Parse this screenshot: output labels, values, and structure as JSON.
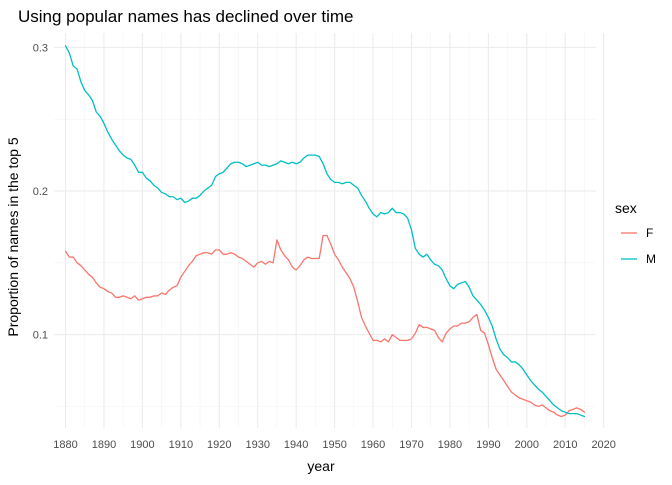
{
  "chart_data": {
    "type": "line",
    "title": "Using popular names has declined over time",
    "xlabel": "year",
    "ylabel": "Proportion of names in the top 5",
    "xlim": [
      1877,
      2018
    ],
    "ylim": [
      0.035,
      0.31
    ],
    "x_ticks": [
      1880,
      1890,
      1900,
      1910,
      1920,
      1930,
      1940,
      1950,
      1960,
      1970,
      1980,
      1990,
      2000,
      2010,
      2020
    ],
    "y_ticks": [
      0.1,
      0.2,
      0.3
    ],
    "y_tick_labels": [
      "0.1",
      "0.2",
      "0.3"
    ],
    "grid": true,
    "legend": {
      "title": "sex",
      "position": "right"
    },
    "series": [
      {
        "name": "F",
        "color": "#F8766D",
        "points": [
          [
            1880,
            0.158
          ],
          [
            1881,
            0.154
          ],
          [
            1882,
            0.154
          ],
          [
            1883,
            0.15
          ],
          [
            1884,
            0.148
          ],
          [
            1885,
            0.145
          ],
          [
            1886,
            0.142
          ],
          [
            1887,
            0.14
          ],
          [
            1888,
            0.136
          ],
          [
            1889,
            0.133
          ],
          [
            1890,
            0.132
          ],
          [
            1891,
            0.13
          ],
          [
            1892,
            0.129
          ],
          [
            1893,
            0.126
          ],
          [
            1894,
            0.126
          ],
          [
            1895,
            0.127
          ],
          [
            1896,
            0.126
          ],
          [
            1897,
            0.125
          ],
          [
            1898,
            0.127
          ],
          [
            1899,
            0.124
          ],
          [
            1900,
            0.125
          ],
          [
            1901,
            0.126
          ],
          [
            1902,
            0.126
          ],
          [
            1903,
            0.127
          ],
          [
            1904,
            0.127
          ],
          [
            1905,
            0.129
          ],
          [
            1906,
            0.128
          ],
          [
            1907,
            0.131
          ],
          [
            1908,
            0.133
          ],
          [
            1909,
            0.134
          ],
          [
            1910,
            0.14
          ],
          [
            1911,
            0.144
          ],
          [
            1912,
            0.148
          ],
          [
            1913,
            0.151
          ],
          [
            1914,
            0.155
          ],
          [
            1915,
            0.156
          ],
          [
            1916,
            0.157
          ],
          [
            1917,
            0.157
          ],
          [
            1918,
            0.156
          ],
          [
            1919,
            0.159
          ],
          [
            1920,
            0.159
          ],
          [
            1921,
            0.156
          ],
          [
            1922,
            0.156
          ],
          [
            1923,
            0.157
          ],
          [
            1924,
            0.156
          ],
          [
            1925,
            0.154
          ],
          [
            1926,
            0.153
          ],
          [
            1927,
            0.151
          ],
          [
            1928,
            0.149
          ],
          [
            1929,
            0.147
          ],
          [
            1930,
            0.15
          ],
          [
            1931,
            0.151
          ],
          [
            1932,
            0.149
          ],
          [
            1933,
            0.151
          ],
          [
            1934,
            0.15
          ],
          [
            1935,
            0.166
          ],
          [
            1936,
            0.159
          ],
          [
            1937,
            0.155
          ],
          [
            1938,
            0.152
          ],
          [
            1939,
            0.147
          ],
          [
            1940,
            0.145
          ],
          [
            1941,
            0.148
          ],
          [
            1942,
            0.152
          ],
          [
            1943,
            0.154
          ],
          [
            1944,
            0.153
          ],
          [
            1945,
            0.153
          ],
          [
            1946,
            0.153
          ],
          [
            1947,
            0.169
          ],
          [
            1948,
            0.169
          ],
          [
            1949,
            0.163
          ],
          [
            1950,
            0.156
          ],
          [
            1951,
            0.152
          ],
          [
            1952,
            0.147
          ],
          [
            1953,
            0.143
          ],
          [
            1954,
            0.139
          ],
          [
            1955,
            0.133
          ],
          [
            1956,
            0.123
          ],
          [
            1957,
            0.112
          ],
          [
            1958,
            0.106
          ],
          [
            1959,
            0.101
          ],
          [
            1960,
            0.096
          ],
          [
            1961,
            0.096
          ],
          [
            1962,
            0.095
          ],
          [
            1963,
            0.097
          ],
          [
            1964,
            0.095
          ],
          [
            1965,
            0.1
          ],
          [
            1966,
            0.098
          ],
          [
            1967,
            0.096
          ],
          [
            1968,
            0.096
          ],
          [
            1969,
            0.096
          ],
          [
            1970,
            0.097
          ],
          [
            1971,
            0.101
          ],
          [
            1972,
            0.107
          ],
          [
            1973,
            0.105
          ],
          [
            1974,
            0.105
          ],
          [
            1975,
            0.104
          ],
          [
            1976,
            0.103
          ],
          [
            1977,
            0.098
          ],
          [
            1978,
            0.095
          ],
          [
            1979,
            0.101
          ],
          [
            1980,
            0.104
          ],
          [
            1981,
            0.106
          ],
          [
            1982,
            0.106
          ],
          [
            1983,
            0.108
          ],
          [
            1984,
            0.108
          ],
          [
            1985,
            0.109
          ],
          [
            1986,
            0.112
          ],
          [
            1987,
            0.114
          ],
          [
            1988,
            0.103
          ],
          [
            1989,
            0.101
          ],
          [
            1990,
            0.093
          ],
          [
            1991,
            0.084
          ],
          [
            1992,
            0.076
          ],
          [
            1993,
            0.072
          ],
          [
            1994,
            0.068
          ],
          [
            1995,
            0.064
          ],
          [
            1996,
            0.06
          ],
          [
            1997,
            0.058
          ],
          [
            1998,
            0.056
          ],
          [
            1999,
            0.055
          ],
          [
            2000,
            0.054
          ],
          [
            2001,
            0.053
          ],
          [
            2002,
            0.051
          ],
          [
            2003,
            0.05
          ],
          [
            2004,
            0.051
          ],
          [
            2005,
            0.049
          ],
          [
            2006,
            0.047
          ],
          [
            2007,
            0.046
          ],
          [
            2008,
            0.044
          ],
          [
            2009,
            0.043
          ],
          [
            2010,
            0.044
          ],
          [
            2011,
            0.047
          ],
          [
            2012,
            0.048
          ],
          [
            2013,
            0.049
          ],
          [
            2014,
            0.048
          ],
          [
            2015,
            0.046
          ]
        ]
      },
      {
        "name": "M",
        "color": "#00BFC4",
        "points": [
          [
            1880,
            0.301
          ],
          [
            1881,
            0.296
          ],
          [
            1882,
            0.287
          ],
          [
            1883,
            0.285
          ],
          [
            1884,
            0.276
          ],
          [
            1885,
            0.27
          ],
          [
            1886,
            0.267
          ],
          [
            1887,
            0.263
          ],
          [
            1888,
            0.255
          ],
          [
            1889,
            0.252
          ],
          [
            1890,
            0.247
          ],
          [
            1891,
            0.241
          ],
          [
            1892,
            0.236
          ],
          [
            1893,
            0.232
          ],
          [
            1894,
            0.228
          ],
          [
            1895,
            0.225
          ],
          [
            1896,
            0.223
          ],
          [
            1897,
            0.222
          ],
          [
            1898,
            0.218
          ],
          [
            1899,
            0.213
          ],
          [
            1900,
            0.213
          ],
          [
            1901,
            0.209
          ],
          [
            1902,
            0.207
          ],
          [
            1903,
            0.204
          ],
          [
            1904,
            0.202
          ],
          [
            1905,
            0.199
          ],
          [
            1906,
            0.198
          ],
          [
            1907,
            0.196
          ],
          [
            1908,
            0.196
          ],
          [
            1909,
            0.194
          ],
          [
            1910,
            0.195
          ],
          [
            1911,
            0.192
          ],
          [
            1912,
            0.193
          ],
          [
            1913,
            0.195
          ],
          [
            1914,
            0.195
          ],
          [
            1915,
            0.197
          ],
          [
            1916,
            0.2
          ],
          [
            1917,
            0.202
          ],
          [
            1918,
            0.204
          ],
          [
            1919,
            0.21
          ],
          [
            1920,
            0.212
          ],
          [
            1921,
            0.213
          ],
          [
            1922,
            0.216
          ],
          [
            1923,
            0.219
          ],
          [
            1924,
            0.22
          ],
          [
            1925,
            0.22
          ],
          [
            1926,
            0.219
          ],
          [
            1927,
            0.217
          ],
          [
            1928,
            0.218
          ],
          [
            1929,
            0.219
          ],
          [
            1930,
            0.22
          ],
          [
            1931,
            0.218
          ],
          [
            1932,
            0.218
          ],
          [
            1933,
            0.217
          ],
          [
            1934,
            0.218
          ],
          [
            1935,
            0.219
          ],
          [
            1936,
            0.221
          ],
          [
            1937,
            0.22
          ],
          [
            1938,
            0.219
          ],
          [
            1939,
            0.22
          ],
          [
            1940,
            0.219
          ],
          [
            1941,
            0.22
          ],
          [
            1942,
            0.223
          ],
          [
            1943,
            0.225
          ],
          [
            1944,
            0.225
          ],
          [
            1945,
            0.225
          ],
          [
            1946,
            0.224
          ],
          [
            1947,
            0.219
          ],
          [
            1948,
            0.212
          ],
          [
            1949,
            0.208
          ],
          [
            1950,
            0.206
          ],
          [
            1951,
            0.206
          ],
          [
            1952,
            0.205
          ],
          [
            1953,
            0.206
          ],
          [
            1954,
            0.206
          ],
          [
            1955,
            0.204
          ],
          [
            1956,
            0.202
          ],
          [
            1957,
            0.197
          ],
          [
            1958,
            0.193
          ],
          [
            1959,
            0.188
          ],
          [
            1960,
            0.184
          ],
          [
            1961,
            0.182
          ],
          [
            1962,
            0.185
          ],
          [
            1963,
            0.184
          ],
          [
            1964,
            0.185
          ],
          [
            1965,
            0.188
          ],
          [
            1966,
            0.185
          ],
          [
            1967,
            0.185
          ],
          [
            1968,
            0.184
          ],
          [
            1969,
            0.181
          ],
          [
            1970,
            0.173
          ],
          [
            1971,
            0.16
          ],
          [
            1972,
            0.156
          ],
          [
            1973,
            0.154
          ],
          [
            1974,
            0.156
          ],
          [
            1975,
            0.152
          ],
          [
            1976,
            0.149
          ],
          [
            1977,
            0.148
          ],
          [
            1978,
            0.145
          ],
          [
            1979,
            0.139
          ],
          [
            1980,
            0.134
          ],
          [
            1981,
            0.132
          ],
          [
            1982,
            0.135
          ],
          [
            1983,
            0.136
          ],
          [
            1984,
            0.137
          ],
          [
            1985,
            0.133
          ],
          [
            1986,
            0.127
          ],
          [
            1987,
            0.124
          ],
          [
            1988,
            0.121
          ],
          [
            1989,
            0.117
          ],
          [
            1990,
            0.112
          ],
          [
            1991,
            0.106
          ],
          [
            1992,
            0.097
          ],
          [
            1993,
            0.09
          ],
          [
            1994,
            0.086
          ],
          [
            1995,
            0.084
          ],
          [
            1996,
            0.081
          ],
          [
            1997,
            0.081
          ],
          [
            1998,
            0.079
          ],
          [
            1999,
            0.076
          ],
          [
            2000,
            0.072
          ],
          [
            2001,
            0.068
          ],
          [
            2002,
            0.065
          ],
          [
            2003,
            0.062
          ],
          [
            2004,
            0.06
          ],
          [
            2005,
            0.057
          ],
          [
            2006,
            0.054
          ],
          [
            2007,
            0.051
          ],
          [
            2008,
            0.049
          ],
          [
            2009,
            0.047
          ],
          [
            2010,
            0.046
          ],
          [
            2011,
            0.045
          ],
          [
            2012,
            0.045
          ],
          [
            2013,
            0.045
          ],
          [
            2014,
            0.044
          ],
          [
            2015,
            0.043
          ]
        ]
      }
    ]
  }
}
